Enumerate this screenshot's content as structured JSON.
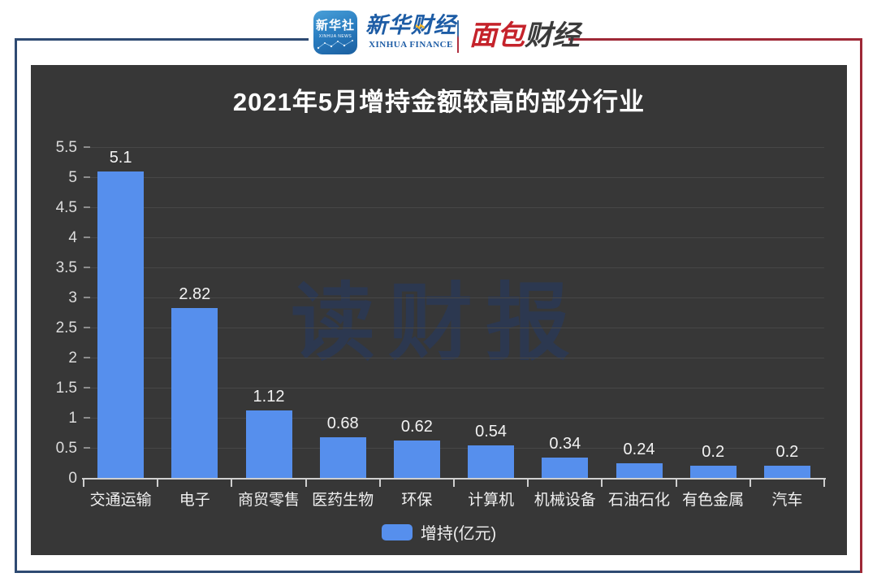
{
  "header": {
    "xinhua_icon": {
      "label_cn": "新华社",
      "label_en": "XINHUA NEWS"
    },
    "xinhua_finance": {
      "label_cn": "新华财经",
      "label_en": "XINHUA FINANCE"
    },
    "mianbao": {
      "label_red": "面包",
      "label_dark": "财经"
    },
    "colors": {
      "blue_line": "#2e4a72",
      "red_line": "#9e2836"
    }
  },
  "chart_data": {
    "type": "bar",
    "title": "2021年5月增持金额较高的部分行业",
    "categories": [
      "交通运输",
      "电子",
      "商贸零售",
      "医药生物",
      "环保",
      "计算机",
      "机械设备",
      "石油石化",
      "有色金属",
      "汽车"
    ],
    "values": [
      5.1,
      2.82,
      1.12,
      0.68,
      0.62,
      0.54,
      0.34,
      0.24,
      0.2,
      0.2
    ],
    "value_labels": [
      "5.1",
      "2.82",
      "1.12",
      "0.68",
      "0.62",
      "0.54",
      "0.34",
      "0.24",
      "0.2",
      "0.2"
    ],
    "ylabel": "",
    "xlabel": "",
    "ylim": [
      0,
      5.5
    ],
    "y_tick_labels": [
      "0",
      "0.5",
      "1",
      "1.5",
      "2",
      "2.5",
      "3",
      "3.5",
      "4",
      "4.5",
      "5",
      "5.5"
    ],
    "grid": true,
    "legend": "增持(亿元)",
    "legend_position": "bottom",
    "bar_color": "#568fed",
    "panel_background": "#373737",
    "watermark": "读财报"
  }
}
